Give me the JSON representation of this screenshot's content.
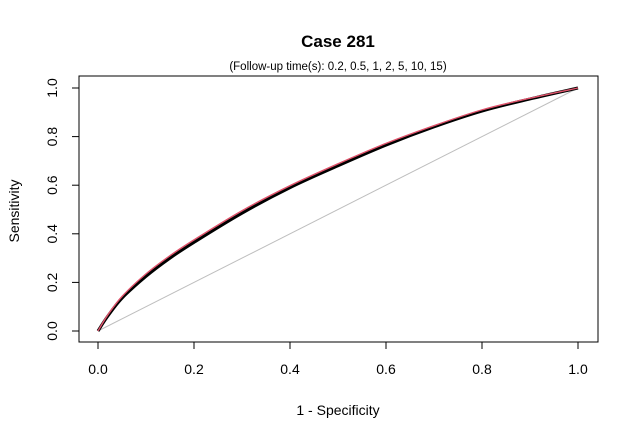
{
  "chart_data": {
    "type": "line",
    "title": "Case 281",
    "subtitle": "(Follow-up time(s): 0.2, 0.5, 1, 2, 5, 10, 15)",
    "xlabel": "1 - Specificity",
    "ylabel": "Sensitivity",
    "xlim": [
      0,
      1
    ],
    "ylim": [
      0,
      1
    ],
    "x_ticks": [
      "0.0",
      "0.2",
      "0.4",
      "0.6",
      "0.8",
      "1.0"
    ],
    "y_ticks": [
      "0.0",
      "0.2",
      "0.4",
      "0.6",
      "0.8",
      "1.0"
    ],
    "grid": false,
    "reference_line": {
      "x": [
        0,
        1
      ],
      "y": [
        0,
        1
      ],
      "color": "#bebebe"
    },
    "x": [
      0.0,
      0.02,
      0.05,
      0.1,
      0.15,
      0.2,
      0.3,
      0.4,
      0.5,
      0.6,
      0.7,
      0.8,
      0.9,
      1.0
    ],
    "series": [
      {
        "color": "#000000",
        "values": [
          0.0,
          0.06,
          0.135,
          0.225,
          0.3,
          0.365,
          0.485,
          0.59,
          0.68,
          0.765,
          0.84,
          0.905,
          0.955,
          1.0
        ]
      },
      {
        "color": "#df536b",
        "values": [
          0.0,
          0.065,
          0.142,
          0.235,
          0.31,
          0.375,
          0.495,
          0.598,
          0.688,
          0.772,
          0.845,
          0.91,
          0.958,
          1.0
        ]
      }
    ]
  }
}
